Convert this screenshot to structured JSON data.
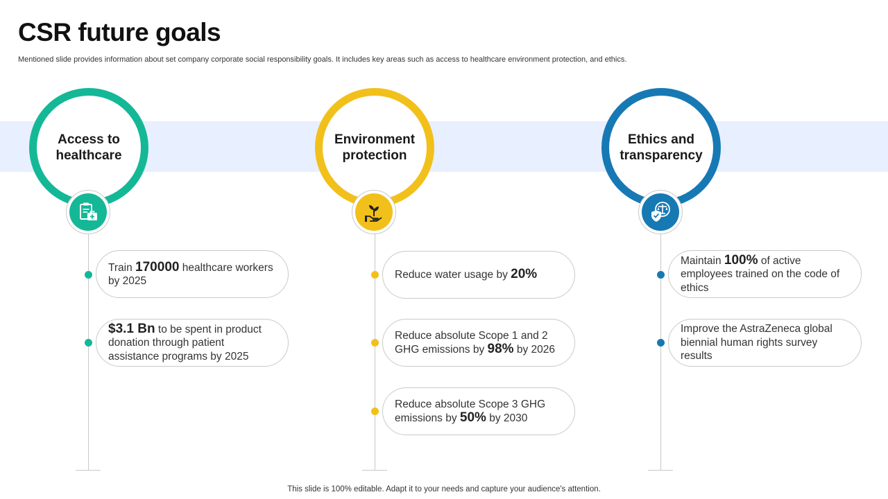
{
  "title": "CSR future goals",
  "subtitle": "Mentioned slide provides information about set company corporate social responsibility goals. It includes key areas such as access to healthcare environment protection, and ethics.",
  "footer": "This slide is 100% editable. Adapt it to your needs and capture your audience's attention.",
  "colors": {
    "teal": "#14b897",
    "yellow": "#f2c01a",
    "blue": "#1779b4",
    "band": "#e8effe"
  },
  "columns": [
    {
      "label_line1": "Access to",
      "label_line2": "healthcare",
      "icon": "medical-clipboard-icon",
      "goals": [
        {
          "pre": "Train ",
          "bold": "170000",
          "post": " healthcare workers by 2025"
        },
        {
          "pre": "",
          "bold": "$3.1 Bn",
          "post": " to be spent in product donation through  patient assistance programs by 2025"
        }
      ]
    },
    {
      "label_line1": "Environment",
      "label_line2": "protection",
      "icon": "plant-in-hand-icon",
      "goals": [
        {
          "pre": "Reduce water usage by ",
          "bold": "20%",
          "post": ""
        },
        {
          "pre": "Reduce absolute Scope 1 and 2 GHG emissions by ",
          "bold": "98%",
          "post": " by 2026"
        },
        {
          "pre": "Reduce absolute Scope 3 GHG emissions by ",
          "bold": "50%",
          "post": " by 2030"
        }
      ]
    },
    {
      "label_line1": "Ethics and",
      "label_line2": "transparency",
      "icon": "scales-shield-icon",
      "goals": [
        {
          "pre": "Maintain ",
          "bold": "100%",
          "post": " of active employees trained on the code of ethics"
        },
        {
          "pre": "Improve the AstraZeneca global biennial human rights survey results",
          "bold": "",
          "post": ""
        }
      ]
    }
  ]
}
